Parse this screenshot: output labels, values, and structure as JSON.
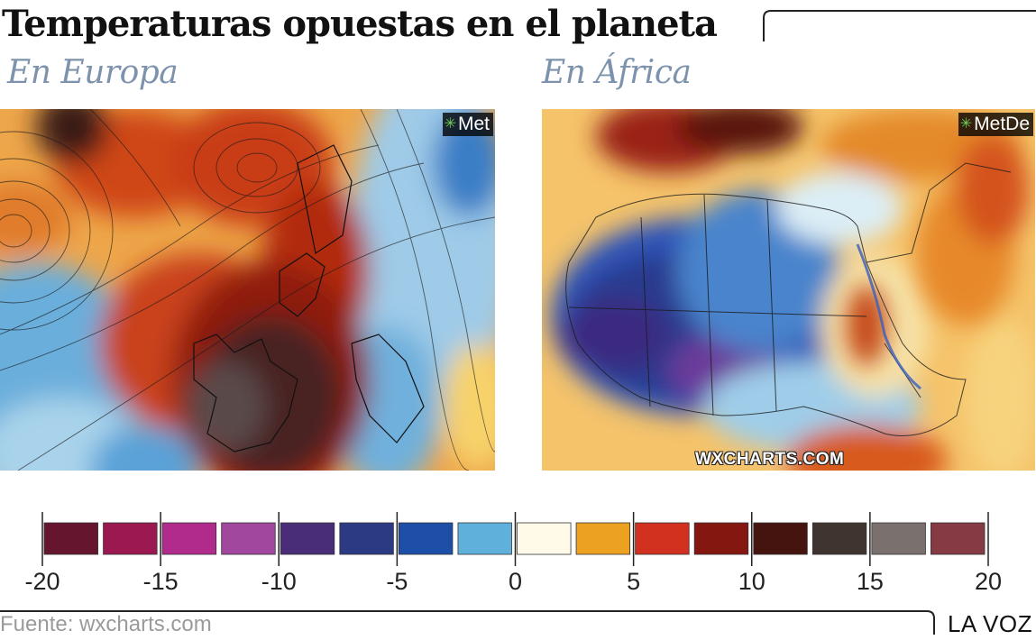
{
  "title": "Temperaturas opuestas en el planeta",
  "panels": [
    {
      "subtitle": "En Europa",
      "brand": "Met"
    },
    {
      "subtitle": "En África",
      "brand": "MetDe",
      "watermark": "WXCHARTS.COM"
    }
  ],
  "legend": {
    "min": -20,
    "max": 20,
    "tick_labels": [
      "-20",
      "-15",
      "-10",
      "-5",
      "0",
      "5",
      "10",
      "15",
      "20"
    ],
    "swatch_colors": [
      "#66152e",
      "#9b1950",
      "#b02b8c",
      "#a2479e",
      "#4a2d78",
      "#2c3a84",
      "#1d4fa8",
      "#5fb0da",
      "#fffbe8",
      "#eda120",
      "#d1311e",
      "#84170f",
      "#46140f",
      "#403431",
      "#7a716f",
      "#863a44"
    ]
  },
  "source": "Fuente: wxcharts.com",
  "brandmark": "LA VOZ"
}
